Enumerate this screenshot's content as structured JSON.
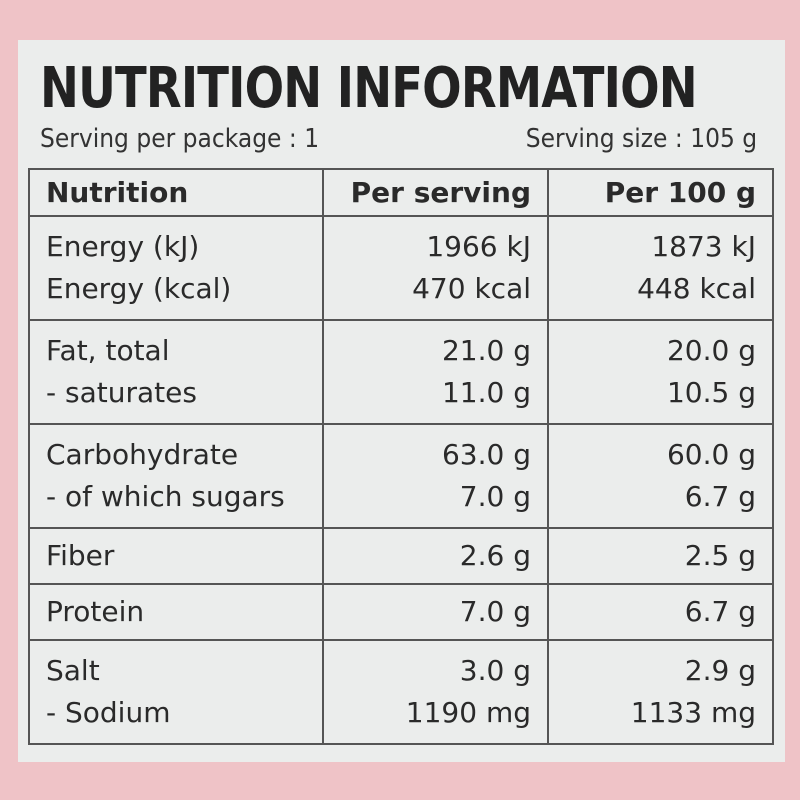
{
  "header": {
    "title": "NUTRITION INFORMATION",
    "serving_per_package": "Serving per package : 1",
    "serving_size": "Serving size : 105 g"
  },
  "table": {
    "columns": [
      "Nutrition",
      "Per serving",
      "Per 100 g"
    ],
    "rows": [
      [
        [
          "Energy (kJ)",
          "1966 kJ",
          "1873 kJ"
        ],
        [
          "Energy (kcal)",
          "470 kcal",
          "448 kcal"
        ]
      ],
      [
        [
          "Fat, total",
          "21.0 g",
          "20.0 g"
        ],
        [
          "- saturates",
          "11.0 g",
          "10.5 g"
        ]
      ],
      [
        [
          "Carbohydrate",
          "63.0 g",
          "60.0 g"
        ],
        [
          "- of which sugars",
          "7.0 g",
          "6.7 g"
        ]
      ],
      [
        [
          "Fiber",
          "2.6 g",
          "2.5 g"
        ]
      ],
      [
        [
          "Protein",
          "7.0 g",
          "6.7 g"
        ]
      ],
      [
        [
          "Salt",
          "3.0 g",
          "2.9 g"
        ],
        [
          "- Sodium",
          "1190 mg",
          "1133 mg"
        ]
      ]
    ]
  }
}
